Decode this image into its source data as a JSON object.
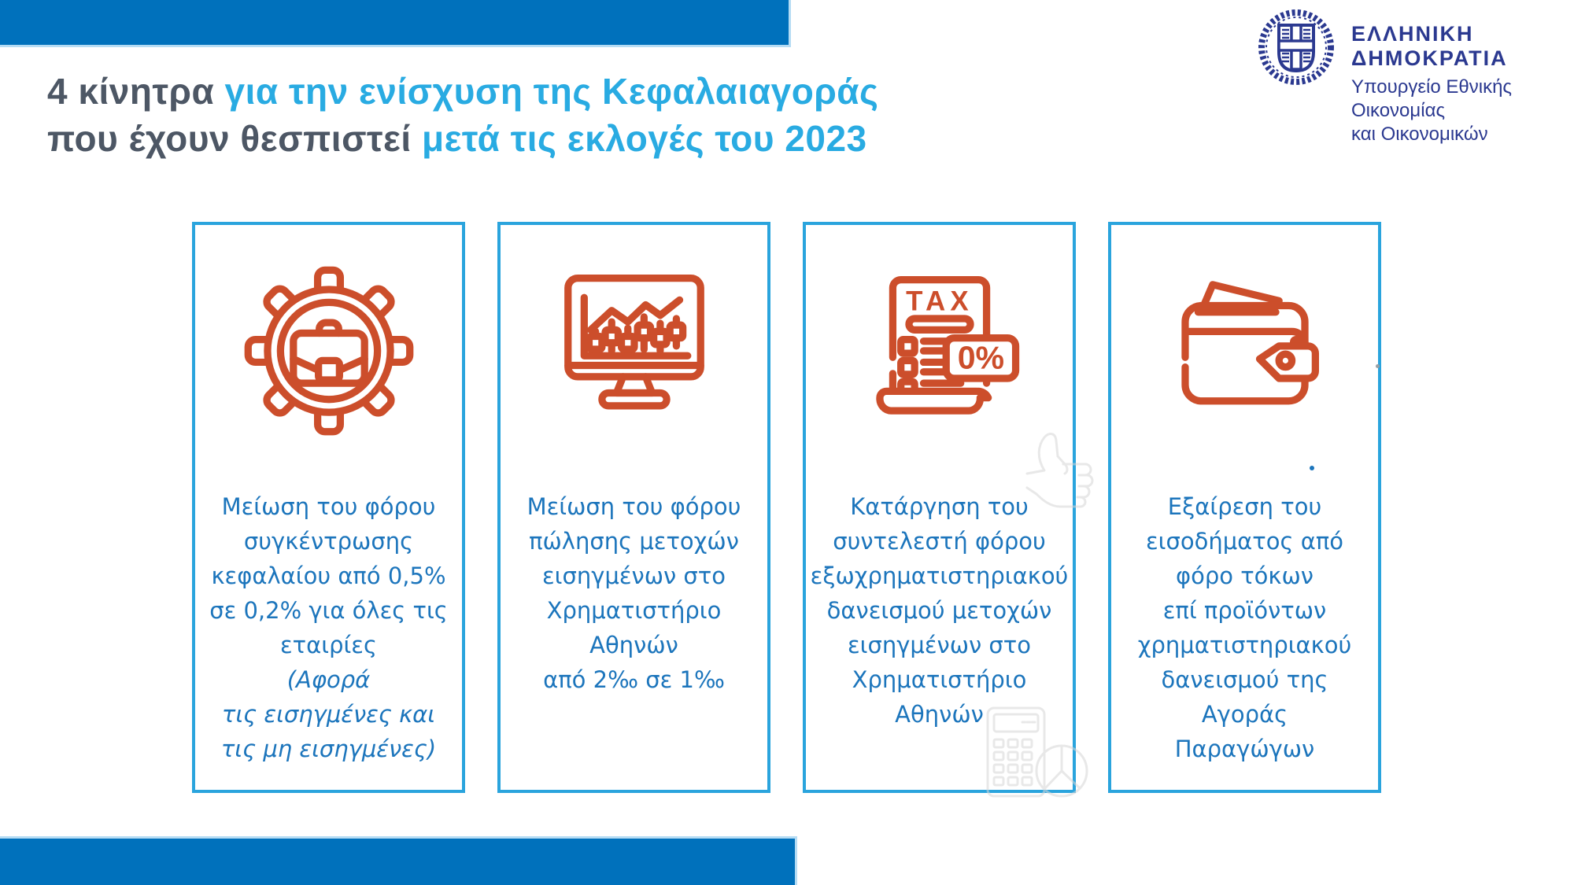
{
  "title": {
    "line1_dark": "4 κίνητρα",
    "line1_accent": " για την ενίσχυση της Κεφαλαιαγοράς",
    "line2_dark": "που έχουν θεσπιστεί",
    "line2_accent": " μετά τις εκλογές του 2023"
  },
  "gov_logo": {
    "emblem_icon": "greek-coat-of-arms-icon",
    "name": "ΕΛΛΗΝΙΚΗ ΔΗΜΟΚΡΑΤΙΑ",
    "ministry_line1": "Υπουργείο Εθνικής Οικονομίας",
    "ministry_line2": "και Οικονομικών"
  },
  "cards": [
    {
      "icon": "gear-briefcase-icon",
      "lines": [
        "Μείωση του φόρου",
        "συγκέντρωσης",
        "κεφαλαίου από 0,5%",
        "σε 0,2% για όλες τις",
        "εταιρίες",
        "(Αφορά",
        "τις εισηγμένες και",
        "τις μη εισηγμένες)"
      ],
      "italic_from": 5
    },
    {
      "icon": "stock-chart-monitor-icon",
      "lines": [
        "Μείωση του φόρου",
        "πώλησης μετοχών",
        "εισηγμένων στο",
        "Χρηματιστήριο",
        "Αθηνών",
        "από 2‰ σε 1‰"
      ]
    },
    {
      "icon": "tax-zero-percent-icon",
      "tax_label": "TAX",
      "zero_label": "0%",
      "watermarks": [
        "thumbs-up-watermark",
        "calculator-pie-watermark"
      ],
      "lines": [
        "Κατάργηση του",
        "συντελεστή φόρου",
        "εξωχρηματιστηριακού",
        "δανεισμού μετοχών",
        "εισηγμένων στο",
        "Χρηματιστήριο",
        "Αθηνών"
      ]
    },
    {
      "icon": "wallet-tag-icon",
      "lines": [
        "Εξαίρεση του",
        "εισοδήματος από",
        "φόρο τόκων",
        "επί προϊόντων",
        "χρηματιστηριακού",
        "δανεισμού της",
        "Αγοράς",
        "Παραγώγων"
      ]
    }
  ],
  "colors": {
    "bar_blue": "#0071BC",
    "bar_edge_light": "#B5DCF4",
    "accent_light_blue": "#29ABE2",
    "title_dark": "#4D5765",
    "navy_logo": "#2B3990",
    "card_border": "#2AA4DD",
    "card_text": "#1C75BC",
    "icon_orange": "#CC4E2B"
  }
}
